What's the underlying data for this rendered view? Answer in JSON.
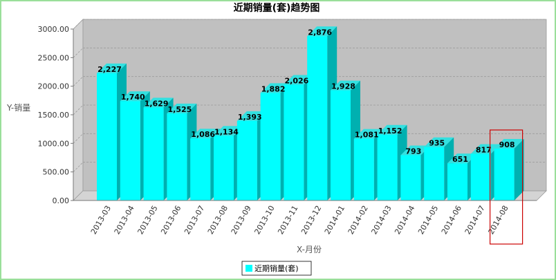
{
  "chart_data": {
    "type": "bar",
    "title": "近期销量(套)趋势图",
    "xlabel": "X-月份",
    "ylabel": "Y-销量",
    "ylim": [
      0,
      3000
    ],
    "yticks": [
      "0.00",
      "500.00",
      "1000.00",
      "1500.00",
      "2000.00",
      "2500.00",
      "3000.00"
    ],
    "grid": true,
    "legend_position": "bottom",
    "categories": [
      "2013-03",
      "2013-04",
      "2013-05",
      "2013-06",
      "2013-07",
      "2013-08",
      "2013-09",
      "2013-10",
      "2013-11",
      "2013-12",
      "2014-01",
      "2014-02",
      "2014-03",
      "2014-04",
      "2014-05",
      "2014-06",
      "2014-07",
      "2014-08"
    ],
    "series": [
      {
        "name": "近期销量(套)",
        "values": [
          2227,
          1740,
          1629,
          1525,
          1086,
          1134,
          1393,
          1882,
          2026,
          2876,
          1928,
          1081,
          1152,
          793,
          935,
          651,
          817,
          908
        ],
        "labels": [
          "2,227",
          "1,740",
          "1,629",
          "1,525",
          "1,086",
          "1,134",
          "1,393",
          "1,882",
          "2,026",
          "2,876",
          "1,928",
          "1,081",
          "1,152",
          "793",
          "935",
          "651",
          "817",
          "908"
        ]
      }
    ],
    "colors": {
      "bar_front": "#00ffff",
      "bar_side": "#00b0b0",
      "bar_top": "#33e0e0",
      "plot_bg": "#c0c0c0",
      "wall": "#d4d4d4",
      "highlight_box": "#cc0000"
    },
    "highlighted_category": "2014-08"
  }
}
